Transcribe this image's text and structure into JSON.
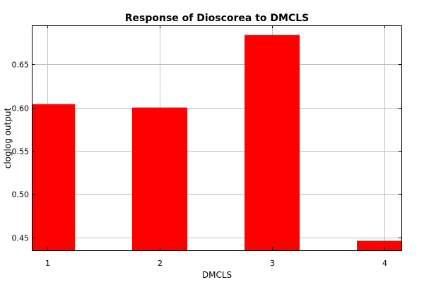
{
  "chart_data": {
    "type": "bar",
    "title": "Response of Dioscorea to DMCLS",
    "xlabel": "DMCLS",
    "ylabel": "cloglog output",
    "categories": [
      "1",
      "2",
      "3",
      "4"
    ],
    "values": [
      0.604,
      0.6,
      0.684,
      0.446
    ],
    "ylim": [
      0.435,
      0.695
    ],
    "yticks": [
      "0.45",
      "0.50",
      "0.55",
      "0.60",
      "0.65"
    ],
    "grid": true,
    "legend": "none",
    "bar_color": "#ff0000"
  }
}
